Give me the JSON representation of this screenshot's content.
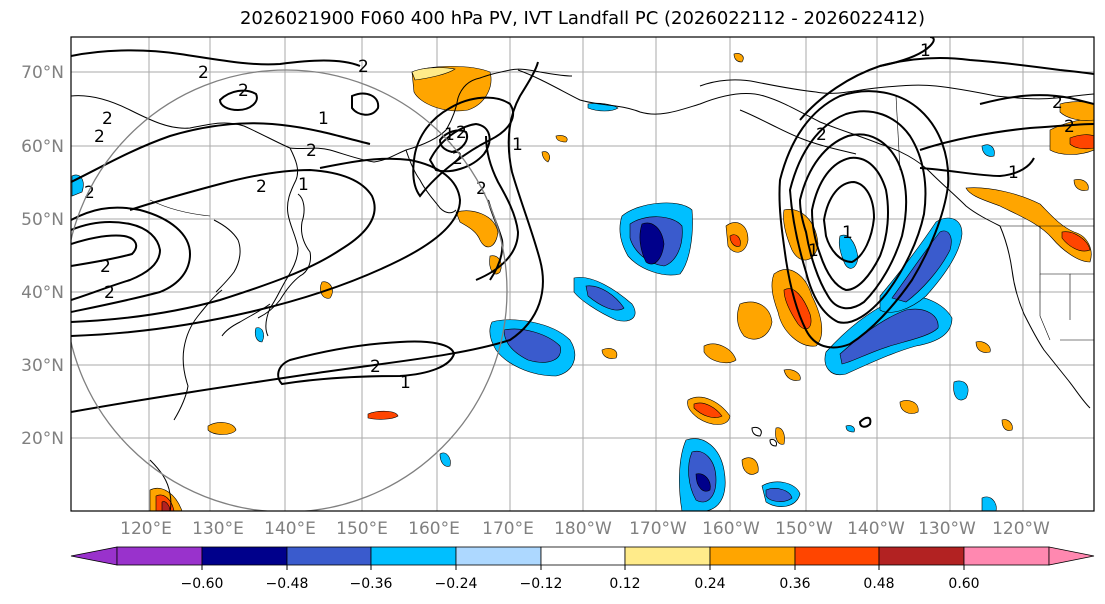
{
  "title": "2026021900 F060 400 hPa PV, IVT Landfall PC (2026022112 - 2026022412)",
  "latitude_labels": [
    "70°N",
    "60°N",
    "50°N",
    "40°N",
    "30°N",
    "20°N"
  ],
  "longitude_labels": [
    "120°E",
    "130°E",
    "140°E",
    "150°E",
    "160°E",
    "170°E",
    "180°W",
    "170°W",
    "160°W",
    "150°W",
    "140°W",
    "130°W",
    "120°W"
  ],
  "colorbar": {
    "tick_labels": [
      "−0.60",
      "−0.48",
      "−0.36",
      "−0.24",
      "−0.12",
      "0.12",
      "0.24",
      "0.36",
      "0.48",
      "0.60"
    ],
    "colors": [
      "#9932cc",
      "#00008b",
      "#3a5bcd",
      "#00bfff",
      "#add8ff",
      "#ffffff",
      "#ffeb8a",
      "#ffa500",
      "#ff4500",
      "#b22222",
      "#ff88b0"
    ]
  },
  "contour_labels": [
    "2",
    "2",
    "2",
    "2",
    "2",
    "1",
    "2",
    "2",
    "2",
    "1",
    "1",
    "2",
    "2",
    "2",
    "2",
    "2",
    "1",
    "2",
    "1",
    "1",
    "2",
    "2",
    "1",
    "1",
    "2",
    "1"
  ]
}
